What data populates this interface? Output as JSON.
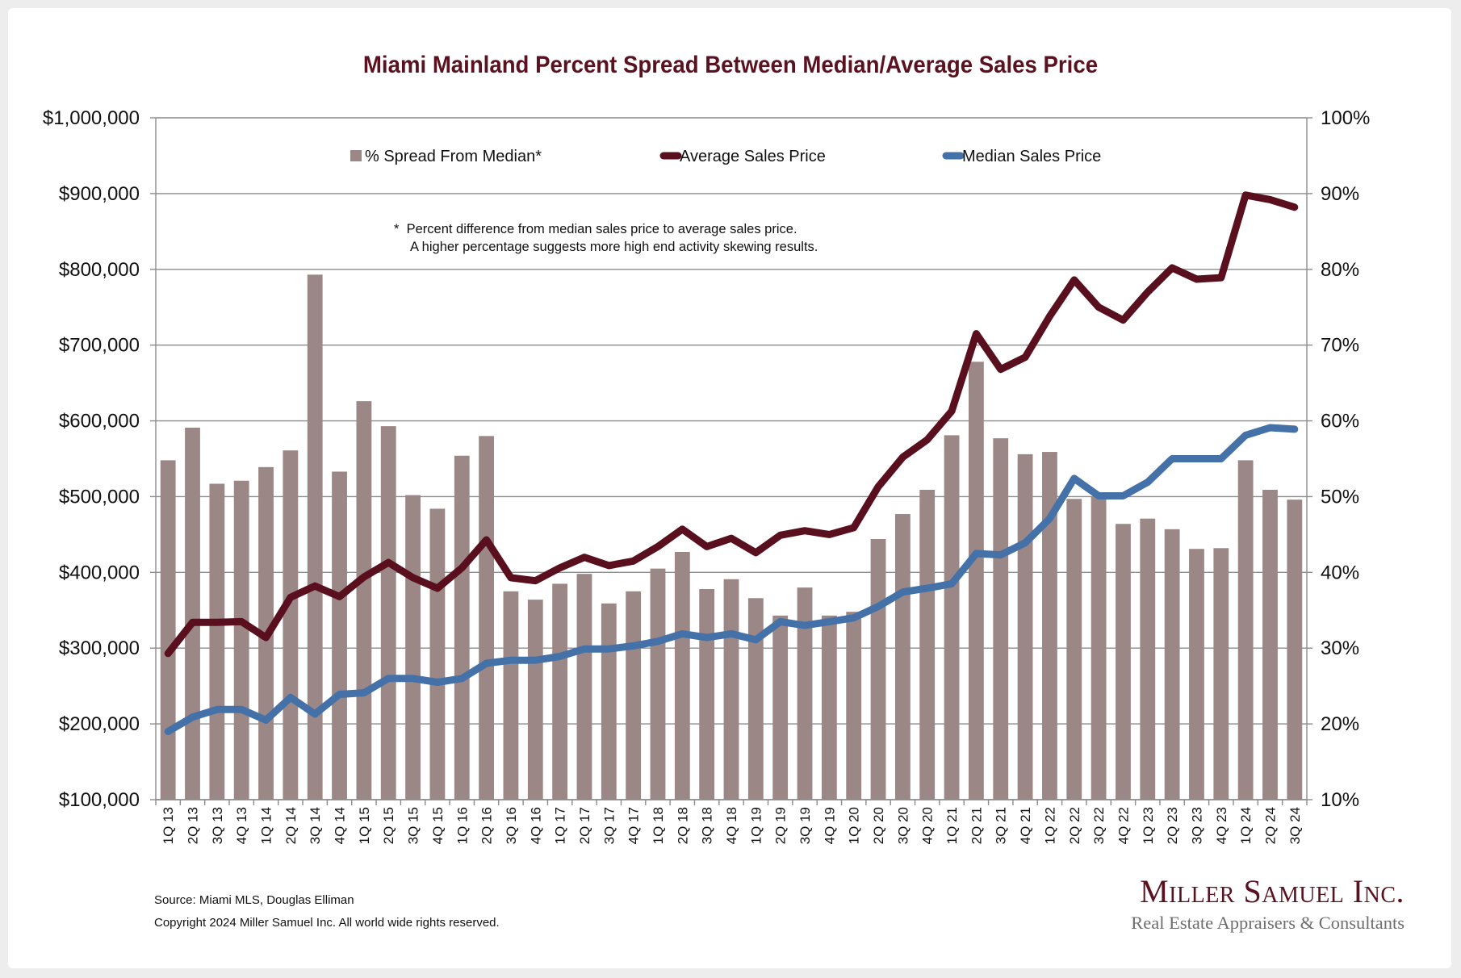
{
  "chart_data": {
    "type": "bar+line",
    "title": "Miami Mainland Percent Spread Between Median/Average Sales Price",
    "categories": [
      "1Q 13",
      "2Q 13",
      "3Q 13",
      "4Q 13",
      "1Q 14",
      "2Q 14",
      "3Q 14",
      "4Q 14",
      "1Q 15",
      "2Q 15",
      "3Q 15",
      "4Q 15",
      "1Q 16",
      "2Q 16",
      "3Q 16",
      "4Q 16",
      "1Q 17",
      "2Q 17",
      "3Q 17",
      "4Q 17",
      "1Q 18",
      "2Q 18",
      "3Q 18",
      "4Q 18",
      "1Q 19",
      "2Q 19",
      "3Q 19",
      "4Q 19",
      "1Q 20",
      "2Q 20",
      "3Q 20",
      "4Q 20",
      "1Q 21",
      "2Q 21",
      "3Q 21",
      "4Q 21",
      "1Q 22",
      "2Q 22",
      "3Q 22",
      "4Q 22",
      "1Q 23",
      "2Q 23",
      "3Q 23",
      "4Q 23",
      "1Q 24",
      "2Q 24",
      "3Q 24"
    ],
    "series": [
      {
        "name": "% Spread From Median*",
        "type": "bar",
        "axis": "right",
        "color": "#9c8787",
        "values": [
          54.8,
          59.1,
          51.7,
          52.1,
          53.9,
          56.1,
          79.3,
          53.3,
          62.6,
          59.3,
          50.2,
          48.4,
          55.4,
          58.0,
          37.5,
          36.4,
          38.5,
          39.8,
          35.9,
          37.5,
          40.5,
          42.7,
          37.8,
          39.1,
          36.6,
          34.3,
          38.0,
          34.3,
          34.8,
          44.4,
          47.7,
          50.9,
          58.1,
          67.8,
          57.7,
          55.6,
          55.9,
          49.7,
          50.0,
          46.4,
          47.1,
          45.7,
          43.1,
          43.2,
          54.8,
          50.9,
          49.6
        ]
      },
      {
        "name": "Average Sales Price",
        "type": "line",
        "axis": "left",
        "color": "#5a0f1e",
        "values": [
          293000,
          334000,
          334000,
          335000,
          314000,
          367000,
          382000,
          368000,
          394000,
          413000,
          393000,
          379000,
          406000,
          443000,
          393000,
          389000,
          406000,
          420000,
          409000,
          415000,
          434000,
          457000,
          434000,
          445000,
          426000,
          449000,
          455000,
          450000,
          459000,
          513000,
          552000,
          575000,
          613000,
          715000,
          668000,
          684000,
          738000,
          786000,
          750000,
          733000,
          770000,
          802000,
          787000,
          789000,
          898000,
          892000,
          882000
        ]
      },
      {
        "name": "Median Sales Price",
        "type": "line",
        "axis": "left",
        "color": "#4472a8",
        "values": [
          190000,
          209000,
          219000,
          219000,
          205000,
          235000,
          213000,
          239000,
          241000,
          260000,
          260000,
          255000,
          260000,
          280000,
          284000,
          284000,
          289000,
          299000,
          299000,
          303000,
          309000,
          319000,
          314000,
          319000,
          311000,
          335000,
          330000,
          335000,
          340000,
          355000,
          374000,
          379000,
          385000,
          425000,
          423000,
          439000,
          471000,
          524000,
          501000,
          501000,
          519000,
          550000,
          550000,
          550000,
          581000,
          591000,
          589000
        ]
      }
    ],
    "y_left": {
      "label": "",
      "range": [
        100000,
        1000000
      ],
      "ticks": [
        "$1,000,000",
        "$900,000",
        "$800,000",
        "$700,000",
        "$600,000",
        "$500,000",
        "$400,000",
        "$300,000",
        "$200,000",
        "$100,000"
      ]
    },
    "y_right": {
      "label": "",
      "range": [
        10,
        100
      ],
      "ticks": [
        "100%",
        "90%",
        "80%",
        "70%",
        "60%",
        "50%",
        "40%",
        "30%",
        "20%",
        "10%"
      ]
    },
    "xlabel": "",
    "grid": true,
    "legend_position": "top-center",
    "legend": [
      "% Spread From Median*",
      "Average Sales Price",
      "Median Sales Price"
    ],
    "annotation": [
      "*  Percent difference from median sales price to average sales price.",
      "A higher percentage suggests more high end activity skewing results."
    ]
  },
  "footer": {
    "source": "Source: Miami MLS, Douglas Elliman",
    "copyright": "Copyright 2024 Miller Samuel Inc.  All world wide rights reserved."
  },
  "logo": {
    "name": "Miller Samuel Inc.",
    "tagline": "Real Estate Appraisers & Consultants"
  }
}
